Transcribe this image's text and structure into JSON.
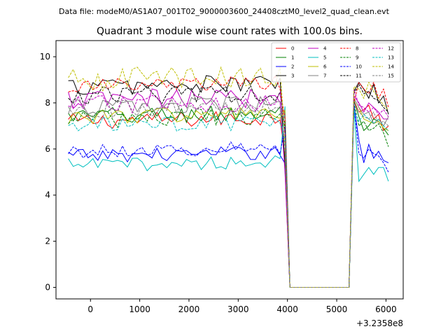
{
  "suptitle": "Data file: modeM0/AS1A07_001T02_9000003600_24408cztM0_level2_quad_clean.evt",
  "chart_data": {
    "type": "line",
    "title": "Quadrant 3 module wise count rates with 100.0s bins.",
    "xlabel": "",
    "ylabel": "",
    "x_offset_label": "+3.2358e8",
    "xlim": [
      -700,
      6350
    ],
    "ylim": [
      -0.5,
      10.7
    ],
    "xticks": [
      0,
      1000,
      2000,
      3000,
      4000,
      5000,
      6000
    ],
    "xtick_labels": [
      "0",
      "1000",
      "2000",
      "3000",
      "4000",
      "5000",
      "6000"
    ],
    "yticks": [
      0,
      2,
      4,
      6,
      8,
      10
    ],
    "ytick_labels": [
      "0",
      "2",
      "4",
      "6",
      "8",
      "10"
    ],
    "legend_location": "top-right",
    "segments": [
      {
        "x_start": -450,
        "x_end": 3950,
        "step": 100
      },
      {
        "x_start": 4050,
        "x_end": 5250,
        "step": 100
      },
      {
        "x_start": 5350,
        "x_end": 6050,
        "step": 100
      }
    ],
    "gap_level": 0.0,
    "series": [
      {
        "name": "0",
        "color": "#ff0000",
        "dash": "solid",
        "base": 7.2,
        "amp": 0.35,
        "tail": [
          8.1,
          7.6,
          7.7,
          7.9,
          7.3,
          7.5,
          6.8,
          7.0
        ]
      },
      {
        "name": "1",
        "color": "#008000",
        "dash": "solid",
        "base": 7.4,
        "amp": 0.4,
        "tail": [
          8.1,
          7.4,
          6.8,
          7.0,
          7.3,
          7.2,
          6.9,
          6.6
        ]
      },
      {
        "name": "2",
        "color": "#0000ff",
        "dash": "solid",
        "base": 5.7,
        "amp": 0.3,
        "tail": [
          7.9,
          6.4,
          5.4,
          6.2,
          5.6,
          5.9,
          5.5,
          5.4
        ]
      },
      {
        "name": "3",
        "color": "#000000",
        "dash": "solid",
        "base": 8.7,
        "amp": 0.4,
        "tail": [
          8.5,
          8.9,
          8.6,
          8.2,
          8.8,
          8.0,
          8.3,
          7.5
        ]
      },
      {
        "name": "4",
        "color": "#c000c0",
        "dash": "solid",
        "base": 8.1,
        "amp": 0.45,
        "tail": [
          8.3,
          8.0,
          7.6,
          8.0,
          7.8,
          7.6,
          7.3,
          7.3
        ]
      },
      {
        "name": "5",
        "color": "#00bfbf",
        "dash": "solid",
        "base": 5.3,
        "amp": 0.3,
        "tail": [
          7.8,
          4.6,
          4.9,
          5.2,
          4.9,
          5.2,
          5.2,
          4.6
        ]
      },
      {
        "name": "6",
        "color": "#bfbf00",
        "dash": "solid",
        "base": 7.4,
        "amp": 0.35,
        "tail": [
          8.2,
          7.8,
          7.3,
          7.2,
          7.1,
          7.2,
          6.9,
          6.8
        ]
      },
      {
        "name": "7",
        "color": "#808080",
        "dash": "solid",
        "base": 7.8,
        "amp": 0.35,
        "tail": [
          8.2,
          7.8,
          7.5,
          7.6,
          7.1,
          7.3,
          7.0,
          7.4
        ]
      },
      {
        "name": "8",
        "color": "#ff0000",
        "dash": "dashed",
        "base": 8.7,
        "amp": 0.35,
        "tail": [
          8.0,
          8.9,
          8.6,
          8.4,
          8.9,
          8.2,
          8.6,
          7.8
        ]
      },
      {
        "name": "9",
        "color": "#008000",
        "dash": "dashed",
        "base": 7.3,
        "amp": 0.4,
        "tail": [
          8.0,
          7.0,
          7.2,
          6.8,
          6.9,
          7.1,
          6.7,
          6.1
        ]
      },
      {
        "name": "10",
        "color": "#0000ff",
        "dash": "dashed",
        "base": 5.9,
        "amp": 0.3,
        "tail": [
          8.0,
          5.8,
          5.6,
          6.0,
          5.8,
          5.7,
          5.4,
          5.0
        ]
      },
      {
        "name": "11",
        "color": "#000000",
        "dash": "dashed",
        "base": 8.3,
        "amp": 0.4,
        "tail": [
          8.4,
          8.8,
          8.4,
          8.5,
          8.2,
          8.1,
          7.8,
          7.6
        ]
      },
      {
        "name": "12",
        "color": "#c000c0",
        "dash": "dashed",
        "base": 7.9,
        "amp": 0.4,
        "tail": [
          8.6,
          7.9,
          7.8,
          7.6,
          7.8,
          7.5,
          7.7,
          7.4
        ]
      },
      {
        "name": "13",
        "color": "#00bfbf",
        "dash": "dashed",
        "base": 7.0,
        "amp": 0.35,
        "tail": [
          7.7,
          7.2,
          7.5,
          7.3,
          7.1,
          7.3,
          7.0,
          6.8
        ]
      },
      {
        "name": "14",
        "color": "#bfbf00",
        "dash": "dashed",
        "base": 9.0,
        "amp": 0.5,
        "tail": [
          8.7,
          8.6,
          8.2,
          8.9,
          8.5,
          8.2,
          7.9,
          7.7
        ]
      },
      {
        "name": "15",
        "color": "#808080",
        "dash": "dashed",
        "base": 7.7,
        "amp": 0.4,
        "tail": [
          8.0,
          7.6,
          7.4,
          7.3,
          7.6,
          7.1,
          7.2,
          7.0
        ]
      }
    ]
  }
}
